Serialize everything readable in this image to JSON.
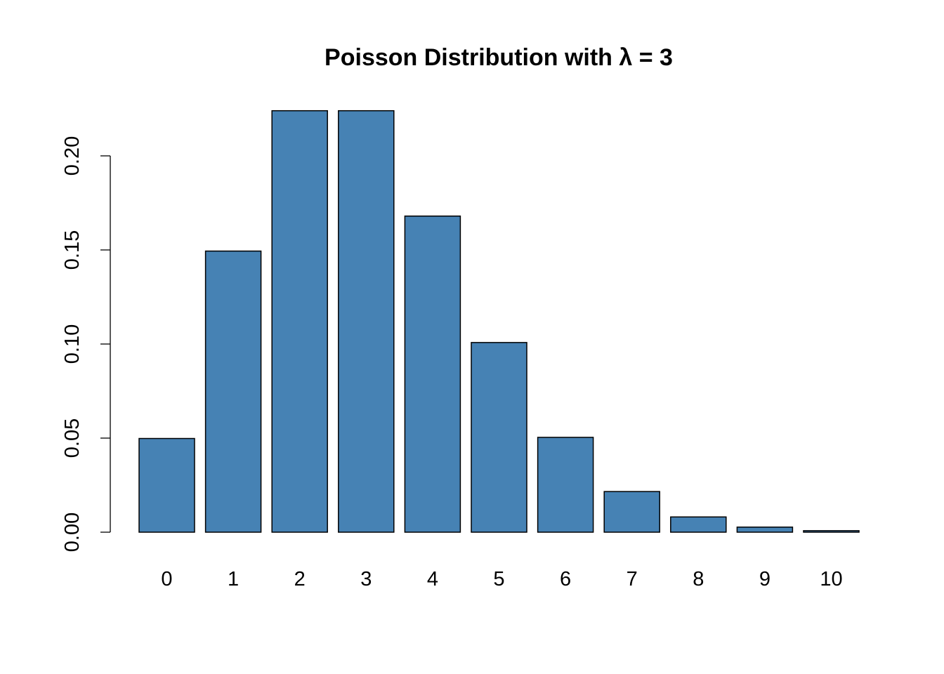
{
  "chart_data": {
    "type": "bar",
    "title": "Poisson Distribution with λ = 3",
    "xlabel": "",
    "ylabel": "",
    "categories": [
      "0",
      "1",
      "2",
      "3",
      "4",
      "5",
      "6",
      "7",
      "8",
      "9",
      "10"
    ],
    "values": [
      0.0498,
      0.1494,
      0.224,
      0.224,
      0.168,
      0.1008,
      0.0504,
      0.0216,
      0.0081,
      0.0027,
      0.0008
    ],
    "ylim": [
      0,
      0.2
    ],
    "yticks": [
      "0.00",
      "0.05",
      "0.10",
      "0.15",
      "0.20"
    ],
    "bar_color": "#4682B4",
    "border_color": "#000000",
    "grid": false,
    "legend": "none"
  }
}
